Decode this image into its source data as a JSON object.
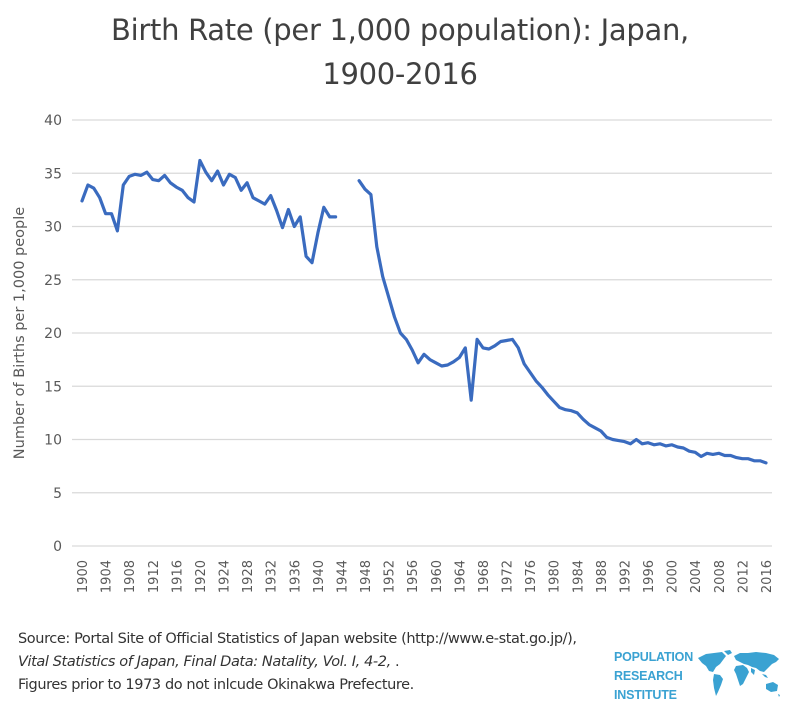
{
  "chart_data": {
    "type": "line",
    "title_line1": "Birth Rate (per 1,000 population): Japan,",
    "title_line2": "1900-2016",
    "xlabel": "",
    "ylabel": "Number of Births per 1,000 people",
    "ylim": [
      0,
      40
    ],
    "xlim": [
      1900,
      2016
    ],
    "y_ticks": [
      "0",
      "5",
      "10",
      "15",
      "20",
      "25",
      "30",
      "35",
      "40"
    ],
    "x_ticks": [
      "1900",
      "1904",
      "1908",
      "1912",
      "1916",
      "1920",
      "1924",
      "1928",
      "1932",
      "1936",
      "1940",
      "1944",
      "1948",
      "1952",
      "1956",
      "1960",
      "1964",
      "1968",
      "1972",
      "1976",
      "1980",
      "1984",
      "1988",
      "1992",
      "1996",
      "2000",
      "2004",
      "2008",
      "2012",
      "2016"
    ],
    "grid": true,
    "line_color": "#3a6bbf",
    "series": [
      {
        "name": "Birth Rate",
        "points": [
          [
            1900,
            32.4
          ],
          [
            1901,
            33.9
          ],
          [
            1902,
            33.6
          ],
          [
            1903,
            32.7
          ],
          [
            1904,
            31.2
          ],
          [
            1905,
            31.2
          ],
          [
            1906,
            29.6
          ],
          [
            1907,
            33.9
          ],
          [
            1908,
            34.7
          ],
          [
            1909,
            34.9
          ],
          [
            1910,
            34.8
          ],
          [
            1911,
            35.1
          ],
          [
            1912,
            34.4
          ],
          [
            1913,
            34.3
          ],
          [
            1914,
            34.8
          ],
          [
            1915,
            34.1
          ],
          [
            1916,
            33.7
          ],
          [
            1917,
            33.4
          ],
          [
            1918,
            32.7
          ],
          [
            1919,
            32.3
          ],
          [
            1920,
            36.2
          ],
          [
            1921,
            35.1
          ],
          [
            1922,
            34.3
          ],
          [
            1923,
            35.2
          ],
          [
            1924,
            33.9
          ],
          [
            1925,
            34.9
          ],
          [
            1926,
            34.6
          ],
          [
            1927,
            33.4
          ],
          [
            1928,
            34.1
          ],
          [
            1929,
            32.7
          ],
          [
            1930,
            32.4
          ],
          [
            1931,
            32.1
          ],
          [
            1932,
            32.9
          ],
          [
            1933,
            31.5
          ],
          [
            1934,
            29.9
          ],
          [
            1935,
            31.6
          ],
          [
            1936,
            30.0
          ],
          [
            1937,
            30.9
          ],
          [
            1938,
            27.2
          ],
          [
            1939,
            26.6
          ],
          [
            1940,
            29.4
          ],
          [
            1941,
            31.8
          ],
          [
            1942,
            30.9
          ],
          [
            1943,
            30.9
          ],
          [
            1944,
            null
          ],
          [
            1945,
            null
          ],
          [
            1946,
            null
          ],
          [
            1947,
            34.3
          ],
          [
            1948,
            33.5
          ],
          [
            1949,
            33.0
          ],
          [
            1950,
            28.1
          ],
          [
            1951,
            25.3
          ],
          [
            1952,
            23.4
          ],
          [
            1953,
            21.5
          ],
          [
            1954,
            20.0
          ],
          [
            1955,
            19.4
          ],
          [
            1956,
            18.4
          ],
          [
            1957,
            17.2
          ],
          [
            1958,
            18.0
          ],
          [
            1959,
            17.5
          ],
          [
            1960,
            17.2
          ],
          [
            1961,
            16.9
          ],
          [
            1962,
            17.0
          ],
          [
            1963,
            17.3
          ],
          [
            1964,
            17.7
          ],
          [
            1965,
            18.6
          ],
          [
            1966,
            13.7
          ],
          [
            1967,
            19.4
          ],
          [
            1968,
            18.6
          ],
          [
            1969,
            18.5
          ],
          [
            1970,
            18.8
          ],
          [
            1971,
            19.2
          ],
          [
            1972,
            19.3
          ],
          [
            1973,
            19.4
          ],
          [
            1974,
            18.6
          ],
          [
            1975,
            17.1
          ],
          [
            1976,
            16.3
          ],
          [
            1977,
            15.5
          ],
          [
            1978,
            14.9
          ],
          [
            1979,
            14.2
          ],
          [
            1980,
            13.6
          ],
          [
            1981,
            13.0
          ],
          [
            1982,
            12.8
          ],
          [
            1983,
            12.7
          ],
          [
            1984,
            12.5
          ],
          [
            1985,
            11.9
          ],
          [
            1986,
            11.4
          ],
          [
            1987,
            11.1
          ],
          [
            1988,
            10.8
          ],
          [
            1989,
            10.2
          ],
          [
            1990,
            10.0
          ],
          [
            1991,
            9.9
          ],
          [
            1992,
            9.8
          ],
          [
            1993,
            9.6
          ],
          [
            1994,
            10.0
          ],
          [
            1995,
            9.6
          ],
          [
            1996,
            9.7
          ],
          [
            1997,
            9.5
          ],
          [
            1998,
            9.6
          ],
          [
            1999,
            9.4
          ],
          [
            2000,
            9.5
          ],
          [
            2001,
            9.3
          ],
          [
            2002,
            9.2
          ],
          [
            2003,
            8.9
          ],
          [
            2004,
            8.8
          ],
          [
            2005,
            8.4
          ],
          [
            2006,
            8.7
          ],
          [
            2007,
            8.6
          ],
          [
            2008,
            8.7
          ],
          [
            2009,
            8.5
          ],
          [
            2010,
            8.5
          ],
          [
            2011,
            8.3
          ],
          [
            2012,
            8.2
          ],
          [
            2013,
            8.2
          ],
          [
            2014,
            8.0
          ],
          [
            2015,
            8.0
          ],
          [
            2016,
            7.8
          ]
        ]
      }
    ]
  },
  "footer": {
    "source_prefix": "Source: Portal Site of Official Statistics of Japan website (http://www.e-stat.go.jp/), ",
    "source_italic": "Vital Statistics of Japan, Final Data: Natality, Vol. I, 4-2, ",
    "source_suffix": ".",
    "note": "Figures prior to 1973 do not inlcude Okinakwa Prefecture."
  },
  "logo": {
    "line1": "POPULATION",
    "line2": "RESEARCH",
    "line3": "INSTITUTE",
    "icon": "world-map-icon",
    "color": "#3aa2d2"
  }
}
